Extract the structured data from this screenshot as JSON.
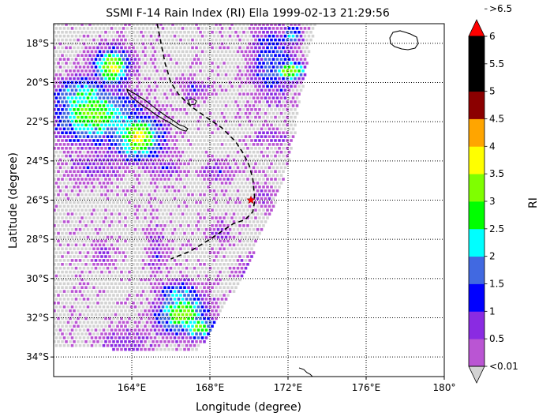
{
  "chart_data": {
    "type": "heatmap",
    "title": "SSMI F-14 Rain Index (RI) Ella 1999-02-13 21:29:56",
    "xlabel": "Longitude (degree)",
    "ylabel": "Latitude (degree)",
    "xlim": [
      160.0,
      180.0
    ],
    "ylim": [
      -35.0,
      -17.0
    ],
    "x_ticks": [
      {
        "value": 164,
        "label": "164°E"
      },
      {
        "value": 168,
        "label": "168°E"
      },
      {
        "value": 172,
        "label": "172°E"
      },
      {
        "value": 176,
        "label": "176°E"
      },
      {
        "value": 180,
        "label": "180°"
      }
    ],
    "y_ticks": [
      {
        "value": -18,
        "label": "18°S"
      },
      {
        "value": -20,
        "label": "20°S"
      },
      {
        "value": -22,
        "label": "22°S"
      },
      {
        "value": -24,
        "label": "24°S"
      },
      {
        "value": -26,
        "label": "26°S"
      },
      {
        "value": -28,
        "label": "28°S"
      },
      {
        "value": -30,
        "label": "30°S"
      },
      {
        "value": -32,
        "label": "32°S"
      },
      {
        "value": -34,
        "label": "34°S"
      }
    ],
    "grid": "dotted",
    "colorbar": {
      "label": "RI",
      "bins": [
        {
          "label": "<0.01",
          "color": "#d3d3d3"
        },
        {
          "label": "0.5",
          "color": "#ba55d3"
        },
        {
          "label": "1",
          "color": "#8a2be2"
        },
        {
          "label": "1.5",
          "color": "#0000ff"
        },
        {
          "label": "2",
          "color": "#4169e1"
        },
        {
          "label": "2.5",
          "color": "#00ffff"
        },
        {
          "label": "3",
          "color": "#00ff00"
        },
        {
          "label": "3.5",
          "color": "#7fff00"
        },
        {
          "label": "4",
          "color": "#ffff00"
        },
        {
          "label": "4.5",
          "color": "#ffa500"
        },
        {
          "label": "5",
          "color": "#8b0000"
        },
        {
          "label": "5.5",
          "color": "#000000"
        },
        {
          "label": "6",
          "color": "#000000"
        },
        {
          "label": ">6.5",
          "color": "#ff0000"
        }
      ]
    },
    "storm_center": {
      "lon": 170.1,
      "lat": -26.0
    },
    "track": [
      [
        165.3,
        -17.0
      ],
      [
        165.5,
        -18.0
      ],
      [
        165.7,
        -19.0
      ],
      [
        166.0,
        -20.0
      ],
      [
        166.4,
        -20.6
      ],
      [
        167.0,
        -21.2
      ],
      [
        168.0,
        -21.9
      ],
      [
        168.6,
        -22.3
      ],
      [
        169.3,
        -23.0
      ],
      [
        169.7,
        -23.6
      ],
      [
        170.0,
        -24.2
      ],
      [
        170.2,
        -24.9
      ],
      [
        170.3,
        -26.0
      ],
      [
        170.2,
        -26.6
      ],
      [
        169.8,
        -27.0
      ],
      [
        169.2,
        -27.2
      ],
      [
        168.6,
        -27.6
      ],
      [
        168.0,
        -28.0
      ],
      [
        167.0,
        -28.6
      ],
      [
        166.0,
        -29.0
      ]
    ],
    "rain_cells": [
      {
        "lon": 163.0,
        "lat": -19.2,
        "rx": 0.9,
        "ry": 0.9,
        "peak": 8
      },
      {
        "lon": 161.6,
        "lat": -20.8,
        "rx": 1.6,
        "ry": 1.0,
        "peak": 6
      },
      {
        "lon": 162.0,
        "lat": -21.6,
        "rx": 1.9,
        "ry": 1.4,
        "peak": 7
      },
      {
        "lon": 164.3,
        "lat": -22.8,
        "rx": 1.2,
        "ry": 1.1,
        "peak": 8
      },
      {
        "lon": 163.2,
        "lat": -22.0,
        "rx": 1.6,
        "ry": 1.4,
        "peak": 5
      },
      {
        "lon": 162.2,
        "lat": -24.2,
        "rx": 1.8,
        "ry": 0.8,
        "peak": 2
      },
      {
        "lon": 171.2,
        "lat": -19.0,
        "rx": 1.1,
        "ry": 1.8,
        "peak": 4
      },
      {
        "lon": 172.1,
        "lat": -19.4,
        "rx": 0.8,
        "ry": 0.5,
        "peak": 8
      },
      {
        "lon": 172.2,
        "lat": -17.6,
        "rx": 0.5,
        "ry": 0.5,
        "peak": 5
      },
      {
        "lon": 167.2,
        "lat": -20.3,
        "rx": 0.9,
        "ry": 0.6,
        "peak": 2
      },
      {
        "lon": 166.6,
        "lat": -31.8,
        "rx": 1.3,
        "ry": 1.1,
        "peak": 7
      },
      {
        "lon": 167.4,
        "lat": -32.5,
        "rx": 0.8,
        "ry": 0.6,
        "peak": 7
      },
      {
        "lon": 166.4,
        "lat": -30.9,
        "rx": 1.0,
        "ry": 0.8,
        "peak": 5
      },
      {
        "lon": 171.0,
        "lat": -22.8,
        "rx": 1.0,
        "ry": 0.5,
        "peak": 2
      },
      {
        "lon": 170.8,
        "lat": -25.8,
        "rx": 0.6,
        "ry": 0.6,
        "peak": 2
      },
      {
        "lon": 170.3,
        "lat": -29.6,
        "rx": 1.0,
        "ry": 0.8,
        "peak": 2
      },
      {
        "lon": 168.4,
        "lat": -24.6,
        "rx": 1.0,
        "ry": 0.5,
        "peak": 2
      },
      {
        "lon": 165.7,
        "lat": -24.4,
        "rx": 0.8,
        "ry": 0.5,
        "peak": 2
      },
      {
        "lon": 165.3,
        "lat": -28.6,
        "rx": 0.5,
        "ry": 1.5,
        "peak": 2
      },
      {
        "lon": 168.6,
        "lat": -27.6,
        "rx": 0.6,
        "ry": 0.6,
        "peak": 2
      },
      {
        "lon": 163.8,
        "lat": -33.2,
        "rx": 1.5,
        "ry": 0.8,
        "peak": 2
      },
      {
        "lon": 162.5,
        "lat": -28.8,
        "rx": 0.5,
        "ry": 0.6,
        "peak": 2
      }
    ]
  }
}
